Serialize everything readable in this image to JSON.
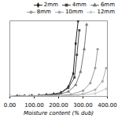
{
  "chart_data": {
    "type": "line",
    "xlabel": "Moisture content (% dub)",
    "xlim": [
      0,
      400
    ],
    "ylim": [
      0,
      4
    ],
    "xticks": [
      {
        "value": 0,
        "label": "0.00"
      },
      {
        "value": 100,
        "label": "100.00"
      },
      {
        "value": 200,
        "label": "200.00"
      },
      {
        "value": 300,
        "label": "300.00"
      },
      {
        "value": 400,
        "label": "400.00"
      }
    ],
    "tick_labels": "x",
    "legend": "upper right",
    "series": [
      {
        "name": "2mm",
        "color": "#222222",
        "marker": "diamond",
        "line_style": "solid",
        "x": [
          0,
          30,
          60,
          90,
          120,
          150,
          180,
          210,
          240,
          260,
          270,
          280
        ],
        "values": [
          0,
          0.01,
          0.02,
          0.03,
          0.05,
          0.08,
          0.12,
          0.2,
          0.5,
          1.2,
          2.8,
          4.0
        ]
      },
      {
        "name": "4mm",
        "color": "#444444",
        "marker": "square",
        "line_style": "solid",
        "x": [
          0,
          30,
          60,
          90,
          120,
          150,
          180,
          210,
          240,
          265,
          275,
          285
        ],
        "values": [
          0,
          0.01,
          0.02,
          0.03,
          0.04,
          0.07,
          0.1,
          0.18,
          0.45,
          1.0,
          2.2,
          3.5
        ]
      },
      {
        "name": "6mm",
        "color": "#777777",
        "marker": "triangle",
        "line_style": "solid",
        "x": [
          0,
          40,
          80,
          120,
          160,
          200,
          240,
          270,
          290,
          305,
          315
        ],
        "values": [
          0,
          0.01,
          0.02,
          0.03,
          0.05,
          0.1,
          0.25,
          0.6,
          1.3,
          2.5,
          3.8
        ]
      },
      {
        "name": "8mm",
        "color": "#999999",
        "marker": "circle",
        "line_style": "solid",
        "x": [
          0,
          50,
          100,
          150,
          200,
          250,
          300,
          330,
          350,
          360
        ],
        "values": [
          0,
          0.01,
          0.02,
          0.03,
          0.05,
          0.1,
          0.3,
          0.7,
          1.5,
          2.5
        ]
      },
      {
        "name": "10mm",
        "color": "#aaaaaa",
        "marker": "circle",
        "line_style": "solid",
        "x": [
          0,
          60,
          120,
          180,
          240,
          300,
          350,
          380,
          395
        ],
        "values": [
          0,
          0.01,
          0.02,
          0.03,
          0.05,
          0.12,
          0.35,
          0.8,
          1.5
        ]
      },
      {
        "name": "12mm",
        "color": "#cccccc",
        "marker": "circle",
        "line_style": "solid",
        "x": [
          0,
          70,
          140,
          210,
          280,
          350,
          395
        ],
        "values": [
          0,
          0.01,
          0.02,
          0.03,
          0.06,
          0.15,
          0.4
        ]
      }
    ]
  }
}
